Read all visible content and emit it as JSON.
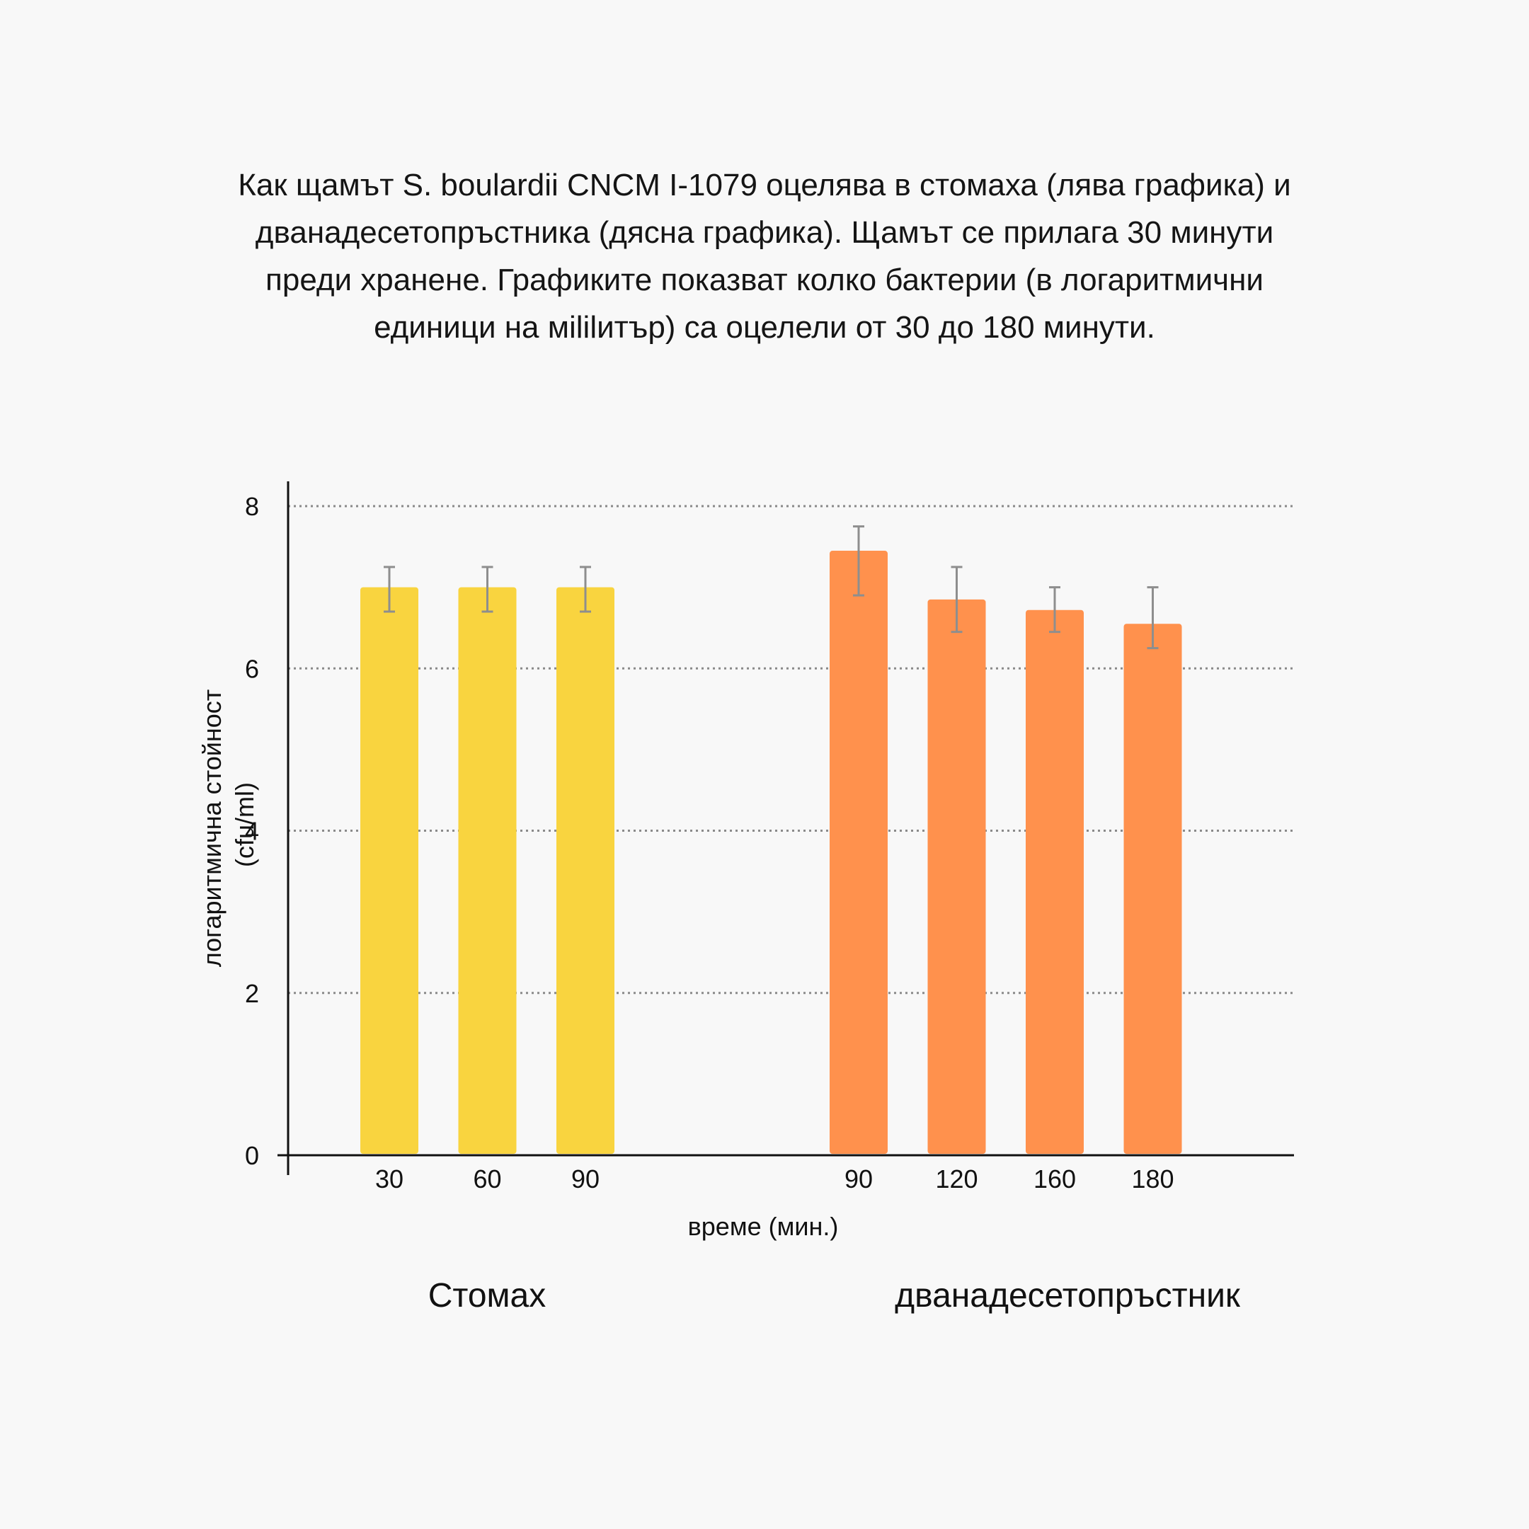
{
  "chart_data": {
    "type": "bar",
    "title": "Как щамът S. boulardii CNCM I-1079 оцелява в стомаха (лява графика) и дванадесетопръстника (дясна графика). Щамът се прилага 30 минути преди хранене. Графиките показват колко бактерии (в логаритмични единици на мililитър) са оцелели от 30 до 180 минути.",
    "xlabel": "време (мин.)",
    "ylabel": "логаритмична стойност (cfu/ml)",
    "ylim": [
      0,
      8
    ],
    "yticks": [
      "0",
      "2",
      "4",
      "6",
      "8"
    ],
    "grid": true,
    "groups": [
      {
        "name": "Стомах",
        "color": "#f9d43f",
        "categories": [
          "30",
          "60",
          "90"
        ],
        "values": [
          7.0,
          7.0,
          7.0
        ],
        "error_low": [
          6.7,
          6.7,
          6.7
        ],
        "error_high": [
          7.25,
          7.25,
          7.25
        ]
      },
      {
        "name": "дванадесетопръстник",
        "color": "#ff914d",
        "categories": [
          "90",
          "120",
          "160",
          "180"
        ],
        "values": [
          7.45,
          6.85,
          6.72,
          6.55
        ],
        "error_low": [
          6.9,
          6.45,
          6.45,
          6.25
        ],
        "error_high": [
          7.75,
          7.25,
          7.0,
          7.0
        ]
      }
    ]
  }
}
